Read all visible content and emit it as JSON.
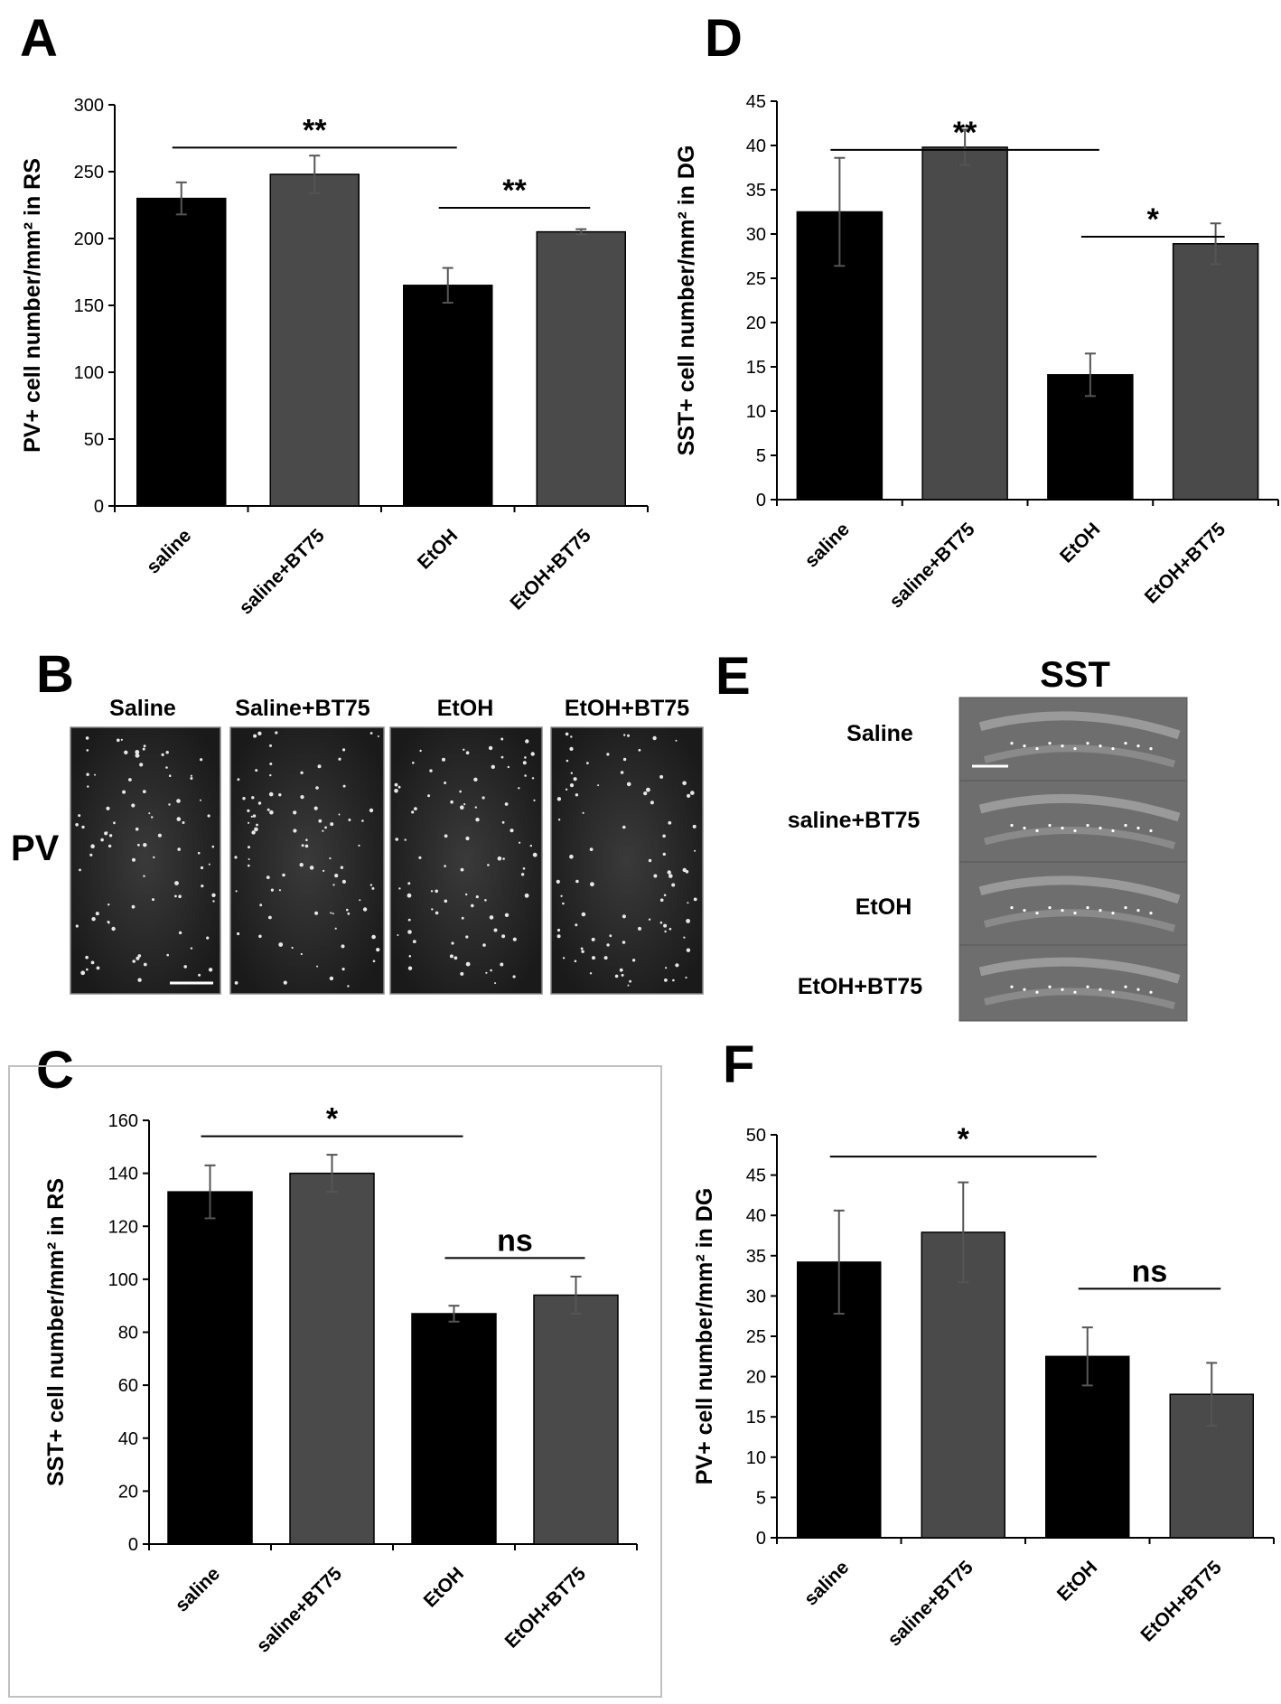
{
  "panels": {
    "A": "A",
    "B": "B",
    "C": "C",
    "D": "D",
    "E": "E",
    "F": "F"
  },
  "colors": {
    "saline": "#000000",
    "bt75": "#4a4a4a",
    "micrograph_bg": "#2a2a2a"
  },
  "panel_B": {
    "row_label": "PV",
    "columns": [
      "Saline",
      "Saline+BT75",
      "EtOH",
      "EtOH+BT75"
    ]
  },
  "panel_E": {
    "title": "SST",
    "rows": [
      "Saline",
      "saline+BT75",
      "EtOH",
      "EtOH+BT75"
    ]
  },
  "chart_data": [
    {
      "id": "A",
      "type": "bar",
      "categories": [
        "saline",
        "saline+BT75",
        "EtOH",
        "EtOH+BT75"
      ],
      "values": [
        230,
        248,
        165,
        205
      ],
      "errors": [
        12,
        14,
        13,
        2
      ],
      "ylabel": "PV+ cell number/mm² in RS",
      "ylim": [
        0,
        300
      ],
      "yticks": [
        0,
        50,
        100,
        150,
        200,
        250,
        300
      ],
      "significance": [
        {
          "from": 0,
          "to": 2,
          "label": "**",
          "y": 268
        },
        {
          "from": 2,
          "to": 3,
          "label": "**",
          "y": 223
        }
      ]
    },
    {
      "id": "D",
      "type": "bar",
      "categories": [
        "saline",
        "saline+BT75",
        "EtOH",
        "EtOH+BT75"
      ],
      "values": [
        32.5,
        39.8,
        14.1,
        28.9
      ],
      "errors": [
        6.1,
        2.0,
        2.4,
        2.3
      ],
      "ylabel": "SST+ cell number/mm² in DG",
      "ylim": [
        0,
        45
      ],
      "yticks": [
        0,
        5,
        10,
        15,
        20,
        25,
        30,
        35,
        40,
        45
      ],
      "significance": [
        {
          "from": 0,
          "to": 2,
          "label": "**",
          "y": 39.5
        },
        {
          "from": 2,
          "to": 3,
          "label": "*",
          "y": 29.7
        }
      ]
    },
    {
      "id": "C",
      "type": "bar",
      "categories": [
        "saline",
        "saline+BT75",
        "EtOH",
        "EtOH+BT75"
      ],
      "values": [
        133,
        140,
        87,
        94
      ],
      "errors": [
        10,
        7,
        3,
        7
      ],
      "ylabel": "SST+ cell number/mm² in RS",
      "ylim": [
        0,
        160
      ],
      "yticks": [
        0,
        20,
        40,
        60,
        80,
        100,
        120,
        140,
        160
      ],
      "significance": [
        {
          "from": 0,
          "to": 2,
          "label": "*",
          "y": 154
        },
        {
          "from": 2,
          "to": 3,
          "label": "ns",
          "y": 108
        }
      ]
    },
    {
      "id": "F",
      "type": "bar",
      "categories": [
        "saline",
        "saline+BT75",
        "EtOH",
        "EtOH+BT75"
      ],
      "values": [
        34.2,
        37.9,
        22.5,
        17.8
      ],
      "errors": [
        6.4,
        6.2,
        3.6,
        3.9
      ],
      "ylabel": "PV+ cell number/mm² in DG",
      "ylim": [
        0,
        50
      ],
      "yticks": [
        0,
        5,
        10,
        15,
        20,
        25,
        30,
        35,
        40,
        45,
        50
      ],
      "significance": [
        {
          "from": 0,
          "to": 2,
          "label": "*",
          "y": 47.3
        },
        {
          "from": 2,
          "to": 3,
          "label": "ns",
          "y": 30.9
        }
      ]
    }
  ]
}
